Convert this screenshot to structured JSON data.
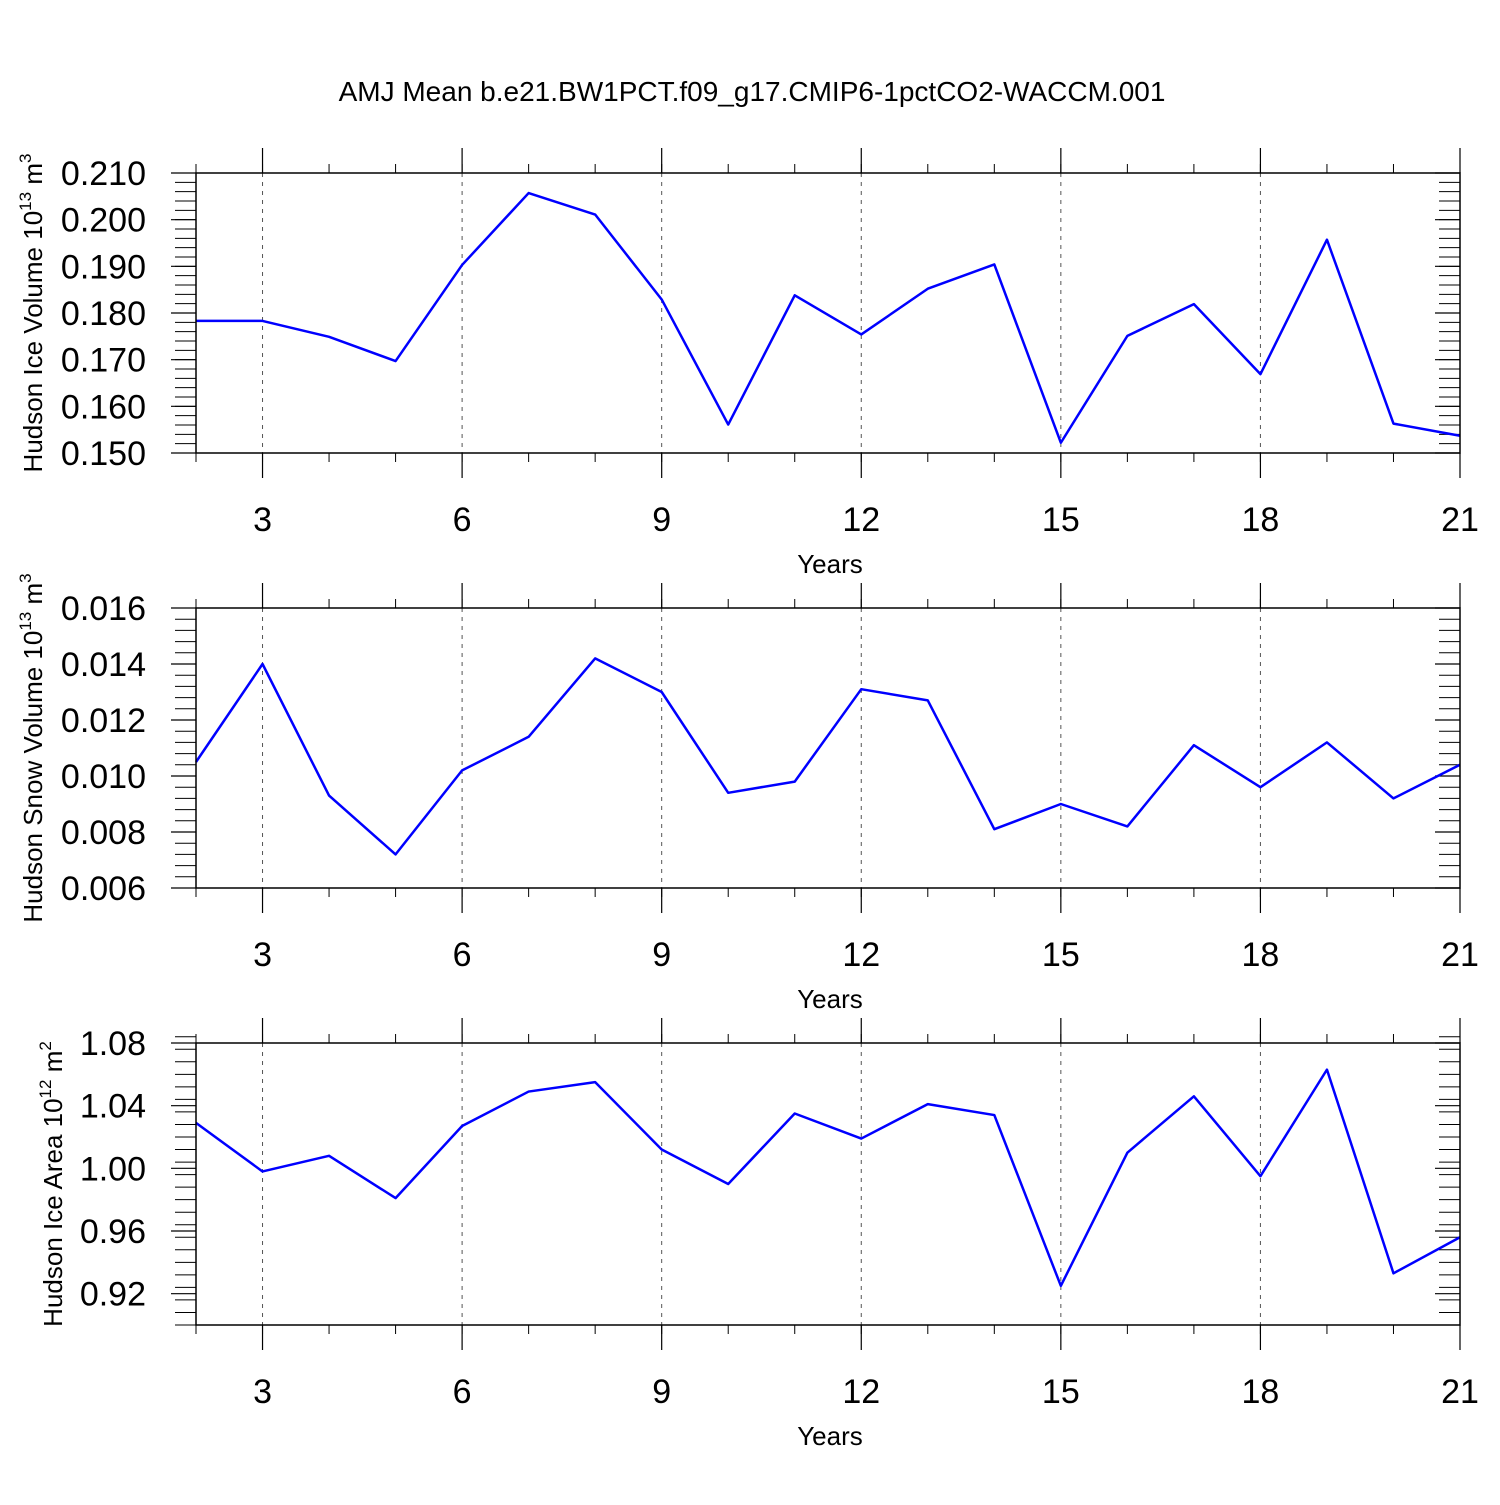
{
  "title": "AMJ Mean b.e21.BW1PCT.f09_g17.CMIP6-1pctCO2-WACCM.001",
  "colors": {
    "series": "#0000ff",
    "axis": "#000000",
    "grid": "#555555"
  },
  "chart_data": [
    {
      "type": "line",
      "ylabel": "Hudson Ice Volume 10",
      "ylabel_exp": "13",
      "ylabel_unit": "m",
      "ylabel_unit_exp": "3",
      "xlabel": "Years",
      "xlim": [
        2,
        21
      ],
      "ylim": [
        0.15,
        0.21
      ],
      "grid": "vertical dashed",
      "xticks": [
        "3",
        "6",
        "9",
        "12",
        "15",
        "18",
        "21"
      ],
      "yticks": [
        "0.150",
        "0.160",
        "0.170",
        "0.180",
        "0.190",
        "0.200",
        "0.210"
      ],
      "x": [
        2,
        3,
        4,
        5,
        6,
        7,
        8,
        9,
        10,
        11,
        12,
        13,
        14,
        15,
        16,
        17,
        18,
        19,
        20,
        21
      ],
      "values": [
        0.1783,
        0.1783,
        0.1749,
        0.1697,
        0.1903,
        0.2057,
        0.2011,
        0.1829,
        0.1561,
        0.1838,
        0.1754,
        0.1852,
        0.1904,
        0.1522,
        0.1751,
        0.1819,
        0.1669,
        0.1957,
        0.1563,
        0.1537
      ]
    },
    {
      "type": "line",
      "ylabel": "Hudson Snow Volume 10",
      "ylabel_exp": "13",
      "ylabel_unit": "m",
      "ylabel_unit_exp": "3",
      "xlabel": "Years",
      "xlim": [
        2,
        21
      ],
      "ylim": [
        0.006,
        0.016
      ],
      "grid": "vertical dashed",
      "xticks": [
        "3",
        "6",
        "9",
        "12",
        "15",
        "18",
        "21"
      ],
      "yticks": [
        "0.006",
        "0.008",
        "0.010",
        "0.012",
        "0.014",
        "0.016"
      ],
      "x": [
        2,
        3,
        4,
        5,
        6,
        7,
        8,
        9,
        10,
        11,
        12,
        13,
        14,
        15,
        16,
        17,
        18,
        19,
        20,
        21
      ],
      "values": [
        0.0105,
        0.014,
        0.0093,
        0.0072,
        0.0102,
        0.0114,
        0.0142,
        0.013,
        0.0094,
        0.0098,
        0.0131,
        0.0127,
        0.0081,
        0.009,
        0.0082,
        0.0111,
        0.0096,
        0.0112,
        0.0092,
        0.0104
      ]
    },
    {
      "type": "line",
      "ylabel": "Hudson Ice Area 10",
      "ylabel_exp": "12",
      "ylabel_unit": "m",
      "ylabel_unit_exp": "2",
      "xlabel": "Years",
      "xlim": [
        2,
        21
      ],
      "ylim": [
        0.9,
        1.08
      ],
      "grid": "vertical dashed",
      "xticks": [
        "3",
        "6",
        "9",
        "12",
        "15",
        "18",
        "21"
      ],
      "yticks": [
        "0.92",
        "0.96",
        "1.00",
        "1.04",
        "1.08"
      ],
      "x": [
        2,
        3,
        4,
        5,
        6,
        7,
        8,
        9,
        10,
        11,
        12,
        13,
        14,
        15,
        16,
        17,
        18,
        19,
        20,
        21
      ],
      "values": [
        1.029,
        0.998,
        1.008,
        0.981,
        1.027,
        1.049,
        1.055,
        1.012,
        0.99,
        1.035,
        1.019,
        1.041,
        1.034,
        0.925,
        1.01,
        1.046,
        0.995,
        1.063,
        0.933,
        0.956
      ]
    }
  ]
}
